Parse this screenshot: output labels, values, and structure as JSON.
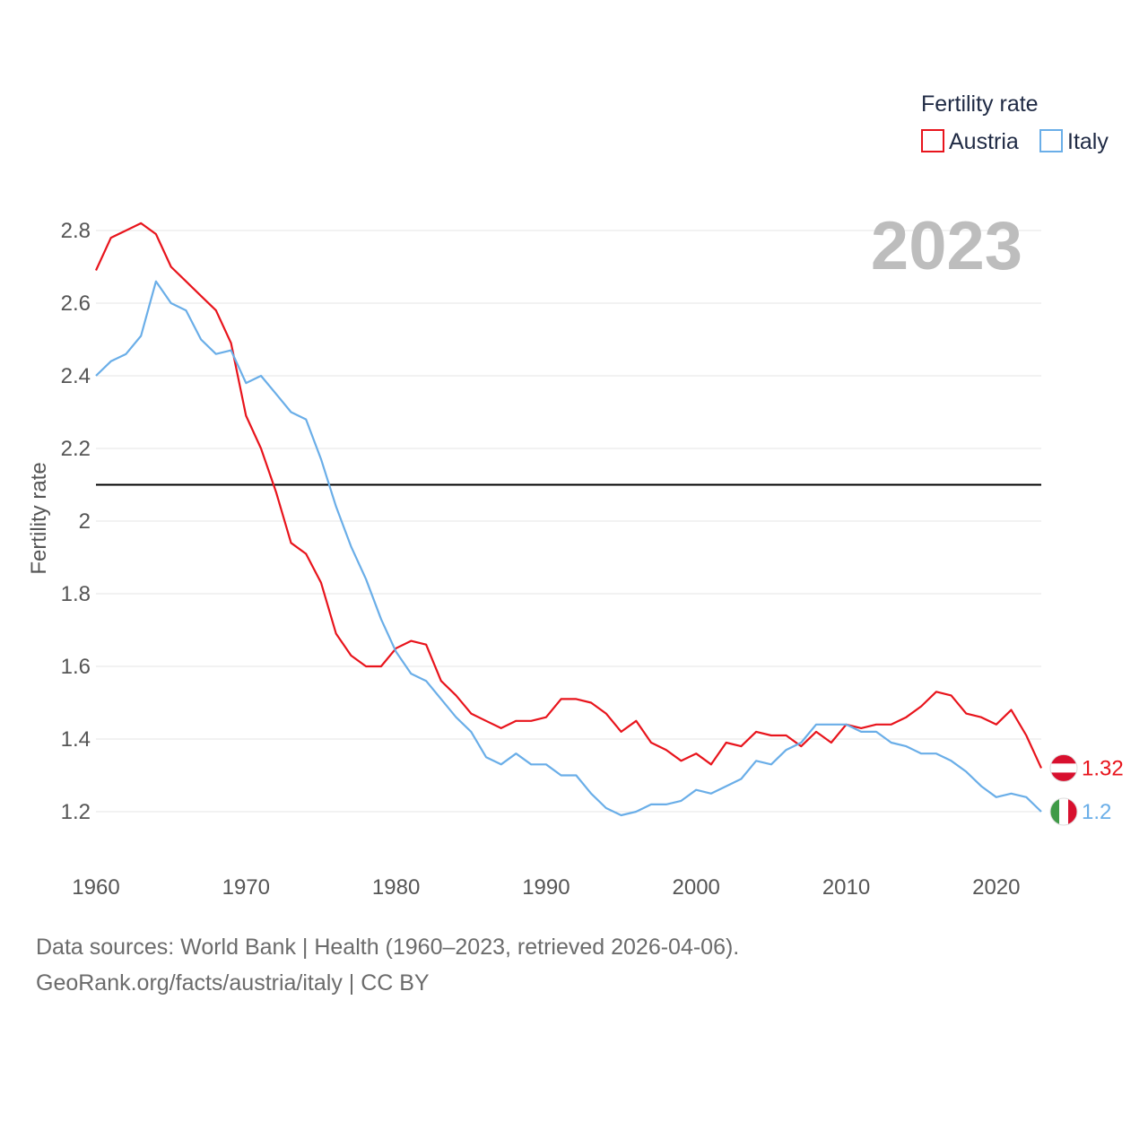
{
  "chart_data": {
    "type": "line",
    "title": "",
    "ylabel": "Fertility rate",
    "xlabel": "",
    "year_label": "2023",
    "ylim": [
      1.0,
      2.9
    ],
    "xlim": [
      1960,
      2023
    ],
    "y_ticks": [
      1.2,
      1.4,
      1.6,
      1.8,
      2,
      2.2,
      2.4,
      2.6,
      2.8
    ],
    "y_tick_labels": [
      "1.2",
      "1.4",
      "1.6",
      "1.8",
      "2",
      "2.2",
      "2.4",
      "2.6",
      "2.8"
    ],
    "x_ticks": [
      1960,
      1970,
      1980,
      1990,
      2000,
      2010,
      2020
    ],
    "x_tick_labels": [
      "1960",
      "1970",
      "1980",
      "1990",
      "2000",
      "2010",
      "2020"
    ],
    "reference_line": {
      "y": 2.1,
      "color": "#000000"
    },
    "legend": {
      "title": "Fertility rate",
      "placement": "top-right",
      "entries": [
        "Austria",
        "Italy"
      ]
    },
    "x": [
      1960,
      1961,
      1962,
      1963,
      1964,
      1965,
      1966,
      1967,
      1968,
      1969,
      1970,
      1971,
      1972,
      1973,
      1974,
      1975,
      1976,
      1977,
      1978,
      1979,
      1980,
      1981,
      1982,
      1983,
      1984,
      1985,
      1986,
      1987,
      1988,
      1989,
      1990,
      1991,
      1992,
      1993,
      1994,
      1995,
      1996,
      1997,
      1998,
      1999,
      2000,
      2001,
      2002,
      2003,
      2004,
      2005,
      2006,
      2007,
      2008,
      2009,
      2010,
      2011,
      2012,
      2013,
      2014,
      2015,
      2016,
      2017,
      2018,
      2019,
      2020,
      2021,
      2022,
      2023
    ],
    "series": [
      {
        "name": "Austria",
        "color": "#e8141c",
        "end_label": "1.32",
        "flag": "austria",
        "values": [
          2.69,
          2.78,
          2.8,
          2.82,
          2.79,
          2.7,
          2.66,
          2.62,
          2.58,
          2.49,
          2.29,
          2.2,
          2.08,
          1.94,
          1.91,
          1.83,
          1.69,
          1.63,
          1.6,
          1.6,
          1.65,
          1.67,
          1.66,
          1.56,
          1.52,
          1.47,
          1.45,
          1.43,
          1.45,
          1.45,
          1.46,
          1.51,
          1.51,
          1.5,
          1.47,
          1.42,
          1.45,
          1.39,
          1.37,
          1.34,
          1.36,
          1.33,
          1.39,
          1.38,
          1.42,
          1.41,
          1.41,
          1.38,
          1.42,
          1.39,
          1.44,
          1.43,
          1.44,
          1.44,
          1.46,
          1.49,
          1.53,
          1.52,
          1.47,
          1.46,
          1.44,
          1.48,
          1.41,
          1.32
        ]
      },
      {
        "name": "Italy",
        "color": "#6aaee8",
        "end_label": "1.2",
        "flag": "italy",
        "values": [
          2.4,
          2.44,
          2.46,
          2.51,
          2.66,
          2.6,
          2.58,
          2.5,
          2.46,
          2.47,
          2.38,
          2.4,
          2.35,
          2.3,
          2.28,
          2.17,
          2.04,
          1.93,
          1.84,
          1.73,
          1.64,
          1.58,
          1.56,
          1.51,
          1.46,
          1.42,
          1.35,
          1.33,
          1.36,
          1.33,
          1.33,
          1.3,
          1.3,
          1.25,
          1.21,
          1.19,
          1.2,
          1.22,
          1.22,
          1.23,
          1.26,
          1.25,
          1.27,
          1.29,
          1.34,
          1.33,
          1.37,
          1.39,
          1.44,
          1.44,
          1.44,
          1.42,
          1.42,
          1.39,
          1.38,
          1.36,
          1.36,
          1.34,
          1.31,
          1.27,
          1.24,
          1.25,
          1.24,
          1.2
        ]
      }
    ]
  },
  "source": {
    "line1": "Data sources: World Bank | Health (1960–2023, retrieved 2026-04-06).",
    "line2": "GeoRank.org/facts/austria/italy | CC BY"
  }
}
